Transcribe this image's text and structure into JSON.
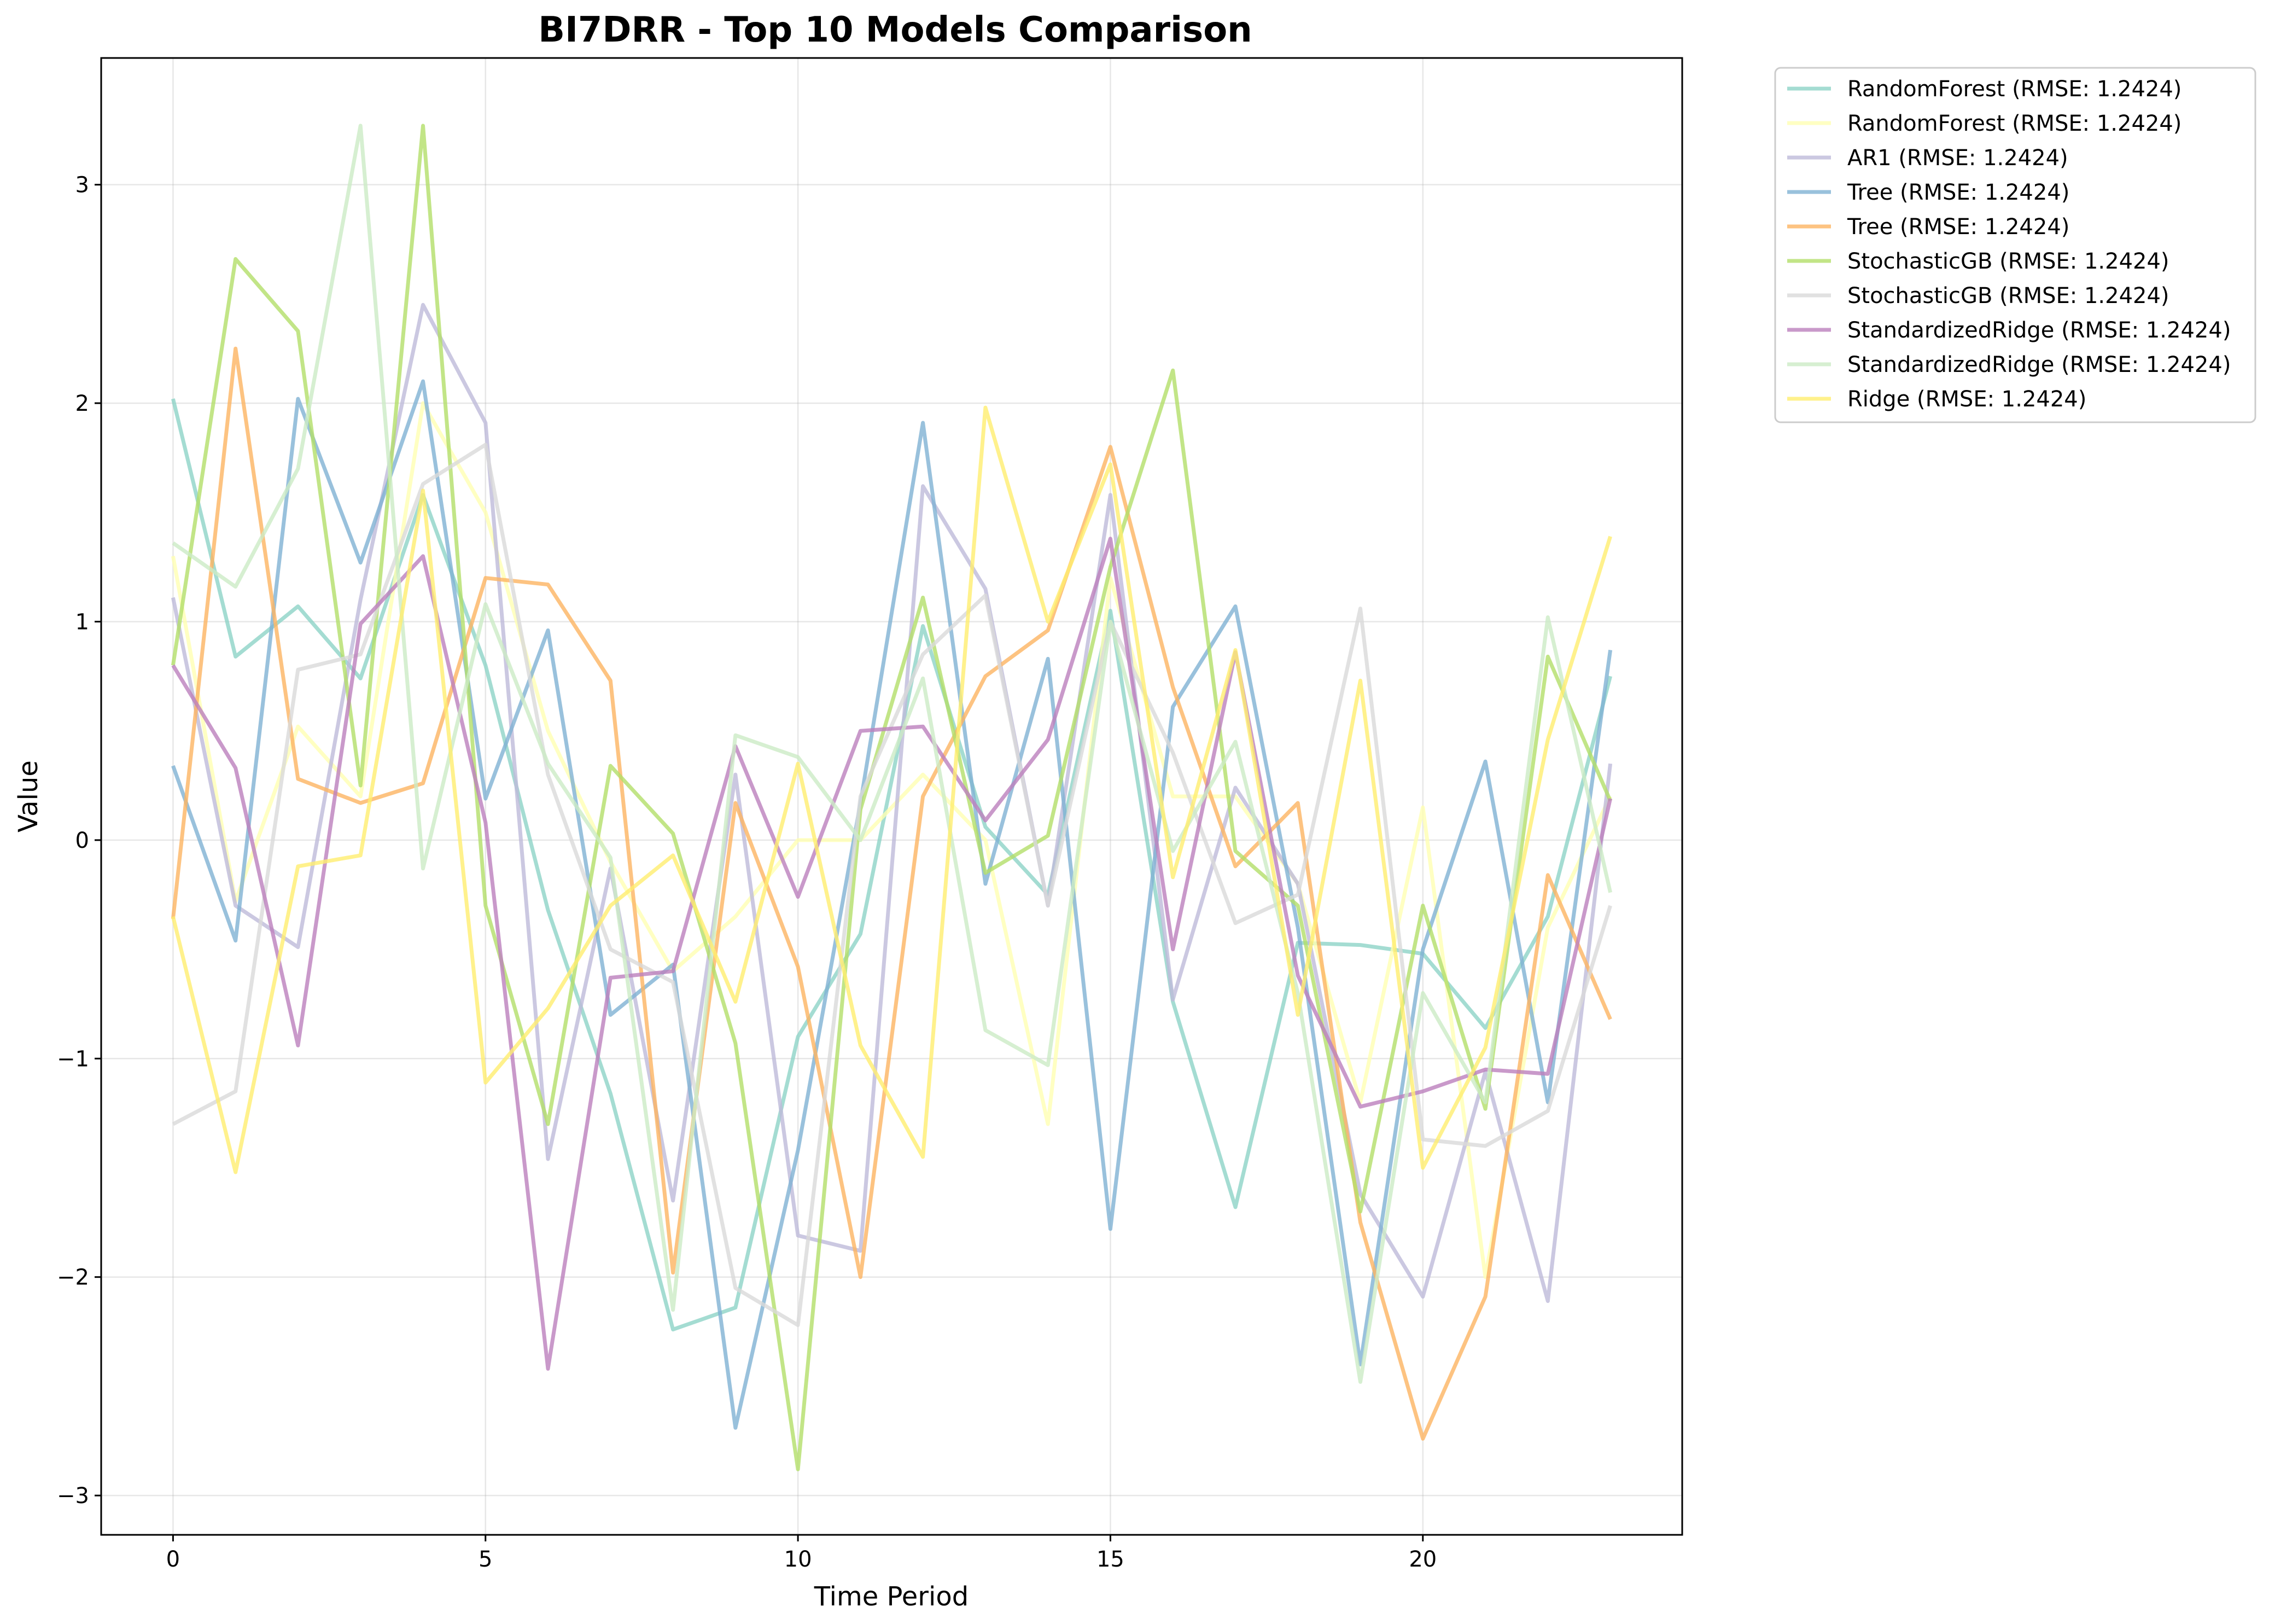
{
  "chart_data": {
    "type": "line",
    "title": "BI7DRR - Top 10 Models Comparison",
    "xlabel": "Time Period",
    "ylabel": "Value",
    "xlim": [
      -1.15,
      24.15
    ],
    "ylim": [
      -3.18,
      3.58
    ],
    "xticks": [
      0,
      5,
      10,
      15,
      20
    ],
    "yticks": [
      -3,
      -2,
      -1,
      0,
      1,
      2,
      3
    ],
    "grid": true,
    "legend_position": "outside-top-right",
    "x": [
      0,
      1,
      2,
      3,
      4,
      5,
      6,
      7,
      8,
      9,
      10,
      11,
      12,
      13,
      14,
      15,
      16,
      17,
      18,
      19,
      20,
      21,
      22,
      23
    ],
    "series": [
      {
        "name": "RandomForest (RMSE: 1.2424)",
        "color": "#8dd3c7",
        "values": [
          2.02,
          0.84,
          1.07,
          0.74,
          1.58,
          0.8,
          -0.32,
          -1.16,
          -2.24,
          -2.14,
          -0.9,
          -0.43,
          0.98,
          0.06,
          -0.25,
          1.05,
          -0.74,
          -1.68,
          -0.47,
          -0.48,
          -0.52,
          -0.86,
          -0.35,
          0.75
        ]
      },
      {
        "name": "RandomForest (RMSE: 1.2424)",
        "color": "#ffffb3",
        "values": [
          1.3,
          -0.28,
          0.52,
          0.2,
          2.0,
          1.5,
          0.5,
          -0.1,
          -0.6,
          -0.35,
          0.0,
          0.0,
          0.3,
          0.0,
          -1.3,
          1.2,
          0.2,
          0.2,
          -0.2,
          -1.2,
          0.15,
          -2.0,
          -0.4,
          0.2
        ]
      },
      {
        "name": "AR1 (RMSE: 1.2424)",
        "color": "#bebada",
        "values": [
          1.11,
          -0.3,
          -0.49,
          1.1,
          2.45,
          1.91,
          -1.46,
          -0.13,
          -1.65,
          0.3,
          -1.81,
          -1.88,
          1.62,
          1.15,
          -0.3,
          1.58,
          -0.73,
          0.24,
          -0.2,
          -1.62,
          -2.09,
          -1.06,
          -2.11,
          0.35
        ]
      },
      {
        "name": "Tree (RMSE: 1.2424)",
        "color": "#80b1d3",
        "values": [
          0.34,
          -0.46,
          2.02,
          1.27,
          2.1,
          0.19,
          0.96,
          -0.8,
          -0.57,
          -2.69,
          -1.42,
          0.17,
          1.91,
          -0.2,
          0.83,
          -1.78,
          0.61,
          1.07,
          -0.4,
          -2.4,
          -0.5,
          0.36,
          -1.2,
          0.87
        ]
      },
      {
        "name": "Tree (RMSE: 1.2424)",
        "color": "#fdb462",
        "values": [
          -0.36,
          2.25,
          0.28,
          0.17,
          0.26,
          1.2,
          1.17,
          0.73,
          -1.98,
          0.17,
          -0.58,
          -2.0,
          0.2,
          0.75,
          0.96,
          1.8,
          0.7,
          -0.12,
          0.17,
          -1.75,
          -2.74,
          -2.09,
          -0.16,
          -0.82
        ]
      },
      {
        "name": "StochasticGB (RMSE: 1.2424)",
        "color": "#b3de69",
        "values": [
          0.8,
          2.66,
          2.33,
          0.25,
          3.27,
          -0.3,
          -1.3,
          0.34,
          0.03,
          -0.93,
          -2.88,
          0.14,
          1.11,
          -0.15,
          0.02,
          1.25,
          2.15,
          -0.05,
          -0.3,
          -1.7,
          -0.3,
          -1.23,
          0.84,
          0.18
        ]
      },
      {
        "name": "StochasticGB (RMSE: 1.2424)",
        "color": "#d9d9d9",
        "values": [
          -1.3,
          -1.15,
          0.78,
          0.85,
          1.63,
          1.81,
          0.3,
          -0.5,
          -0.65,
          -2.05,
          -2.22,
          0.2,
          0.85,
          1.12,
          -0.3,
          1.0,
          0.4,
          -0.38,
          -0.25,
          1.06,
          -1.37,
          -1.4,
          -1.24,
          -0.3
        ]
      },
      {
        "name": "StandardizedRidge (RMSE: 1.2424)",
        "color": "#bc80bd",
        "values": [
          0.8,
          0.33,
          -0.94,
          0.99,
          1.3,
          0.08,
          -2.42,
          -0.63,
          -0.6,
          0.43,
          -0.26,
          0.5,
          0.52,
          0.09,
          0.46,
          1.38,
          -0.5,
          0.86,
          -0.62,
          -1.22,
          -1.15,
          -1.05,
          -1.07,
          0.19
        ]
      },
      {
        "name": "StandardizedRidge (RMSE: 1.2424)",
        "color": "#ccebc5",
        "values": [
          1.36,
          1.16,
          1.7,
          3.27,
          -0.13,
          1.08,
          0.35,
          -0.08,
          -2.15,
          0.48,
          0.38,
          0.0,
          0.74,
          -0.87,
          -1.03,
          1.0,
          -0.05,
          0.45,
          -0.7,
          -2.48,
          -0.7,
          -1.2,
          1.02,
          -0.24
        ]
      },
      {
        "name": "Ridge (RMSE: 1.2424)",
        "color": "#ffed6f",
        "values": [
          -0.35,
          -1.52,
          -0.12,
          -0.07,
          1.6,
          -1.11,
          -0.77,
          -0.3,
          -0.07,
          -0.74,
          0.35,
          -0.94,
          -1.45,
          1.98,
          1.0,
          1.72,
          -0.17,
          0.87,
          -0.8,
          0.73,
          -1.5,
          -0.95,
          0.46,
          1.39
        ]
      }
    ]
  }
}
